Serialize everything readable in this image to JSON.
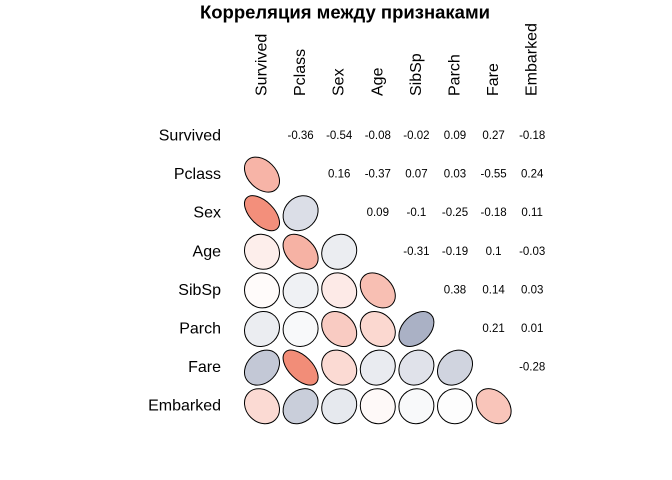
{
  "chart_data": {
    "type": "heatmap",
    "title": "Корреляция между признаками",
    "variables": [
      "Survived",
      "Pclass",
      "Sex",
      "Age",
      "SibSp",
      "Parch",
      "Fare",
      "Embarked"
    ],
    "matrix": [
      [
        null,
        -0.36,
        -0.54,
        -0.08,
        -0.02,
        0.09,
        0.27,
        -0.18
      ],
      [
        -0.36,
        null,
        0.16,
        -0.37,
        0.07,
        0.03,
        -0.55,
        0.24
      ],
      [
        -0.54,
        0.16,
        null,
        0.09,
        -0.1,
        -0.25,
        -0.18,
        0.11
      ],
      [
        -0.08,
        -0.37,
        0.09,
        null,
        -0.31,
        -0.19,
        0.1,
        -0.03
      ],
      [
        -0.02,
        0.07,
        -0.1,
        -0.31,
        null,
        0.38,
        0.14,
        0.03
      ],
      [
        0.09,
        0.03,
        -0.25,
        -0.19,
        0.38,
        null,
        0.21,
        0.01
      ],
      [
        0.27,
        -0.55,
        -0.18,
        0.1,
        0.14,
        0.21,
        null,
        -0.28
      ],
      [
        -0.18,
        0.24,
        0.11,
        -0.03,
        0.03,
        0.01,
        -0.28,
        null
      ]
    ],
    "grid": false,
    "colors": {
      "negative": "#e8300a",
      "zero": "#ffffff",
      "positive": "#1f3366"
    }
  }
}
